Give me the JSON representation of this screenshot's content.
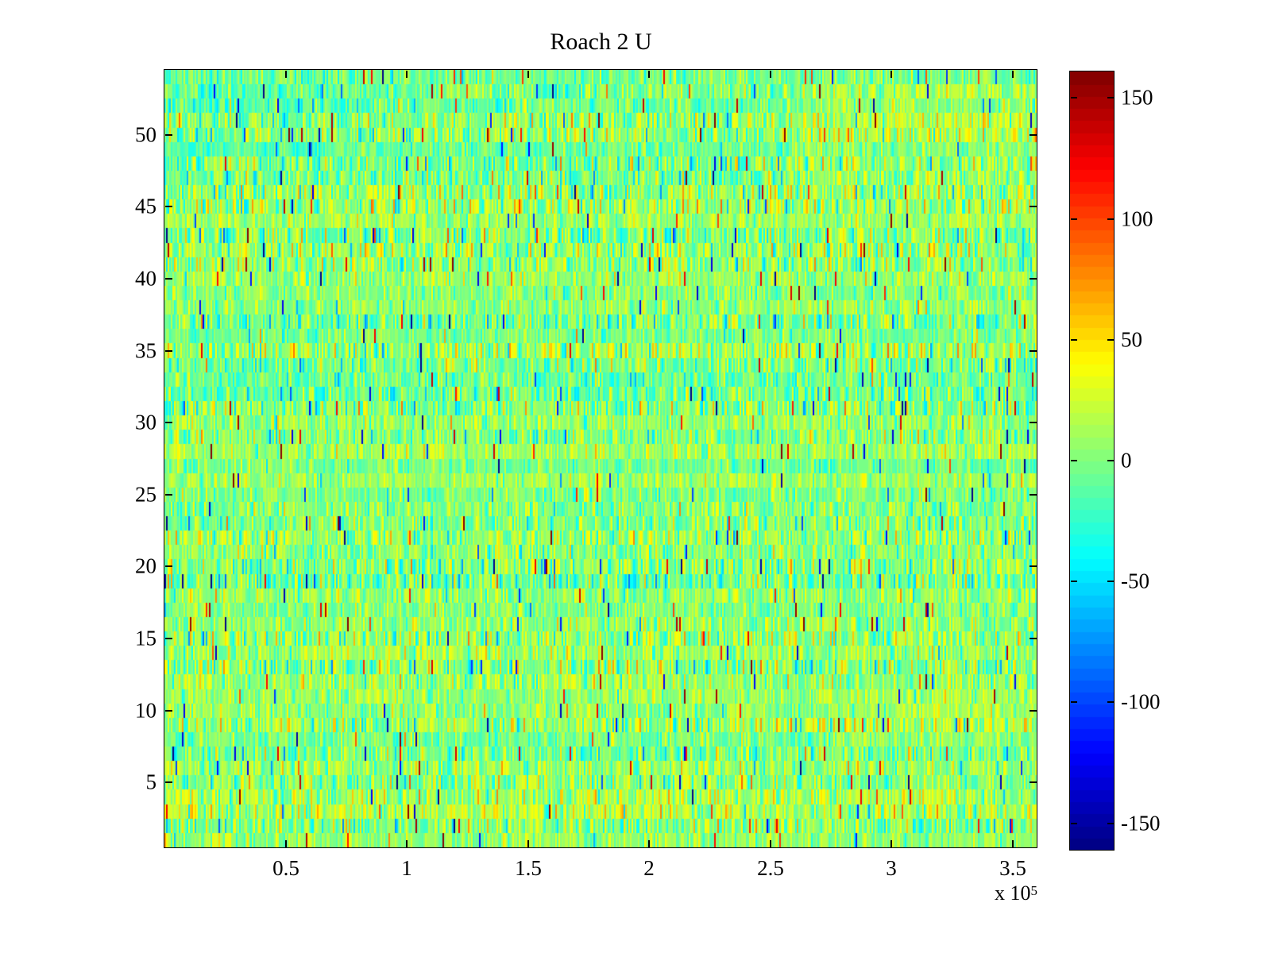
{
  "figure": {
    "background_color": "#ffffff",
    "box_color": "#000000"
  },
  "chart_data": {
    "type": "heatmap",
    "title": "Roach 2 U",
    "colormap": "jet",
    "colormap_levels": 64,
    "grid": false,
    "x_axis": {
      "label": "",
      "tick_labels": [
        "0.5",
        "1",
        "1.5",
        "2",
        "2.5",
        "3",
        "3.5"
      ],
      "tick_values": [
        50000,
        100000,
        150000,
        200000,
        250000,
        300000,
        350000
      ],
      "range": [
        0,
        360000
      ],
      "multiplier_base": "x 10",
      "multiplier_exponent": "5"
    },
    "y_axis": {
      "label": "",
      "tick_labels": [
        "5",
        "10",
        "15",
        "20",
        "25",
        "30",
        "35",
        "40",
        "45",
        "50"
      ],
      "tick_values": [
        5,
        10,
        15,
        20,
        25,
        30,
        35,
        40,
        45,
        50
      ],
      "range": [
        0.5,
        54.5
      ],
      "rows": 54
    },
    "colorbar": {
      "position": "right",
      "tick_labels": [
        "150",
        "100",
        "50",
        "0",
        "-50",
        "-100",
        "-150"
      ],
      "tick_values": [
        150,
        100,
        50,
        0,
        -50,
        -100,
        -150
      ],
      "range": [
        -161,
        161
      ],
      "top_color": "#7f0000",
      "bottom_color": "#00007f"
    },
    "data_summary": {
      "description": "Dense random noise image, 54 rows by ~550 visible columns; values mostly between -50 and +50 (cyan-green-yellow), sparse outliers reaching about ±160 (red/blue specks); per-row bias bands; warmer (yellow/orange) patches at top-right rows 47-53, right side of rows 8-11, and bottom rows 2-4; cooler cyan patch at top-left rows 49-53.",
      "approx_mean": 0,
      "approx_sigma": 22,
      "outlier_fraction": 0.02
    }
  }
}
